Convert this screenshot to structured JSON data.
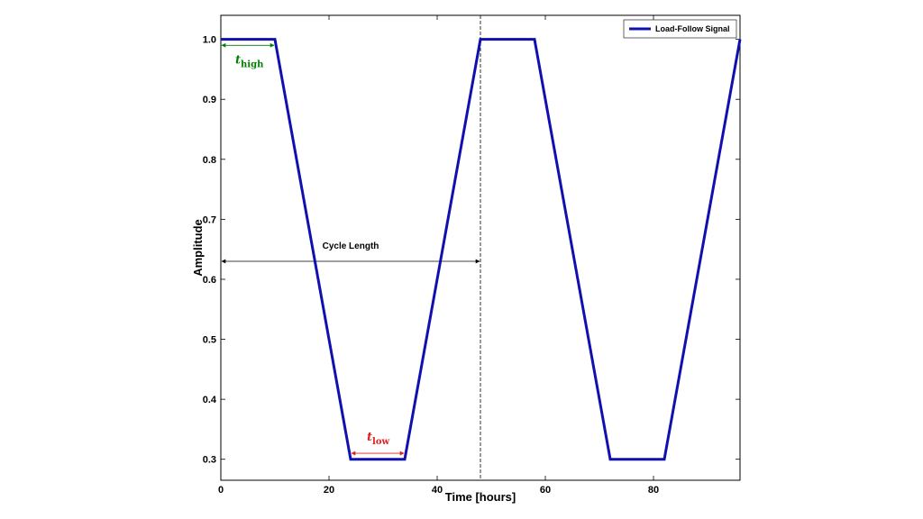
{
  "chart_data": {
    "type": "line",
    "xlabel": "Time [hours]",
    "ylabel": "Amplitude",
    "xlim": [
      0,
      96
    ],
    "ylim": [
      0.265,
      1.04
    ],
    "x_ticks": [
      0,
      20,
      40,
      60,
      80
    ],
    "y_ticks": [
      0.3,
      0.4,
      0.5,
      0.6,
      0.7,
      0.8,
      0.9,
      1.0
    ],
    "x_tick_labels": [
      "0",
      "20",
      "40",
      "60",
      "80"
    ],
    "y_tick_labels": [
      "0.3",
      "0.4",
      "0.5",
      "0.6",
      "0.7",
      "0.8",
      "0.9",
      "1.0"
    ],
    "grid": false,
    "legend_position": "top-right",
    "series": [
      {
        "name": "Load-Follow Signal",
        "color": "#1010b0",
        "x": [
          0,
          10,
          24,
          34,
          48,
          58,
          72,
          82,
          96
        ],
        "y": [
          1.0,
          1.0,
          0.3,
          0.3,
          1.0,
          1.0,
          0.3,
          0.3,
          1.0
        ]
      }
    ],
    "annotations": {
      "t_high": {
        "base": "t",
        "sub": "high",
        "color": "#008000",
        "x_start": 0,
        "x_end": 10,
        "y": 0.99
      },
      "t_low": {
        "base": "t",
        "sub": "low",
        "color": "#e02020",
        "x_start": 24,
        "x_end": 34,
        "y": 0.31
      },
      "cycle": {
        "label": "Cycle Length",
        "x_start": 0,
        "x_end": 48,
        "y": 0.63
      },
      "cycle_marker_x": 48
    }
  }
}
